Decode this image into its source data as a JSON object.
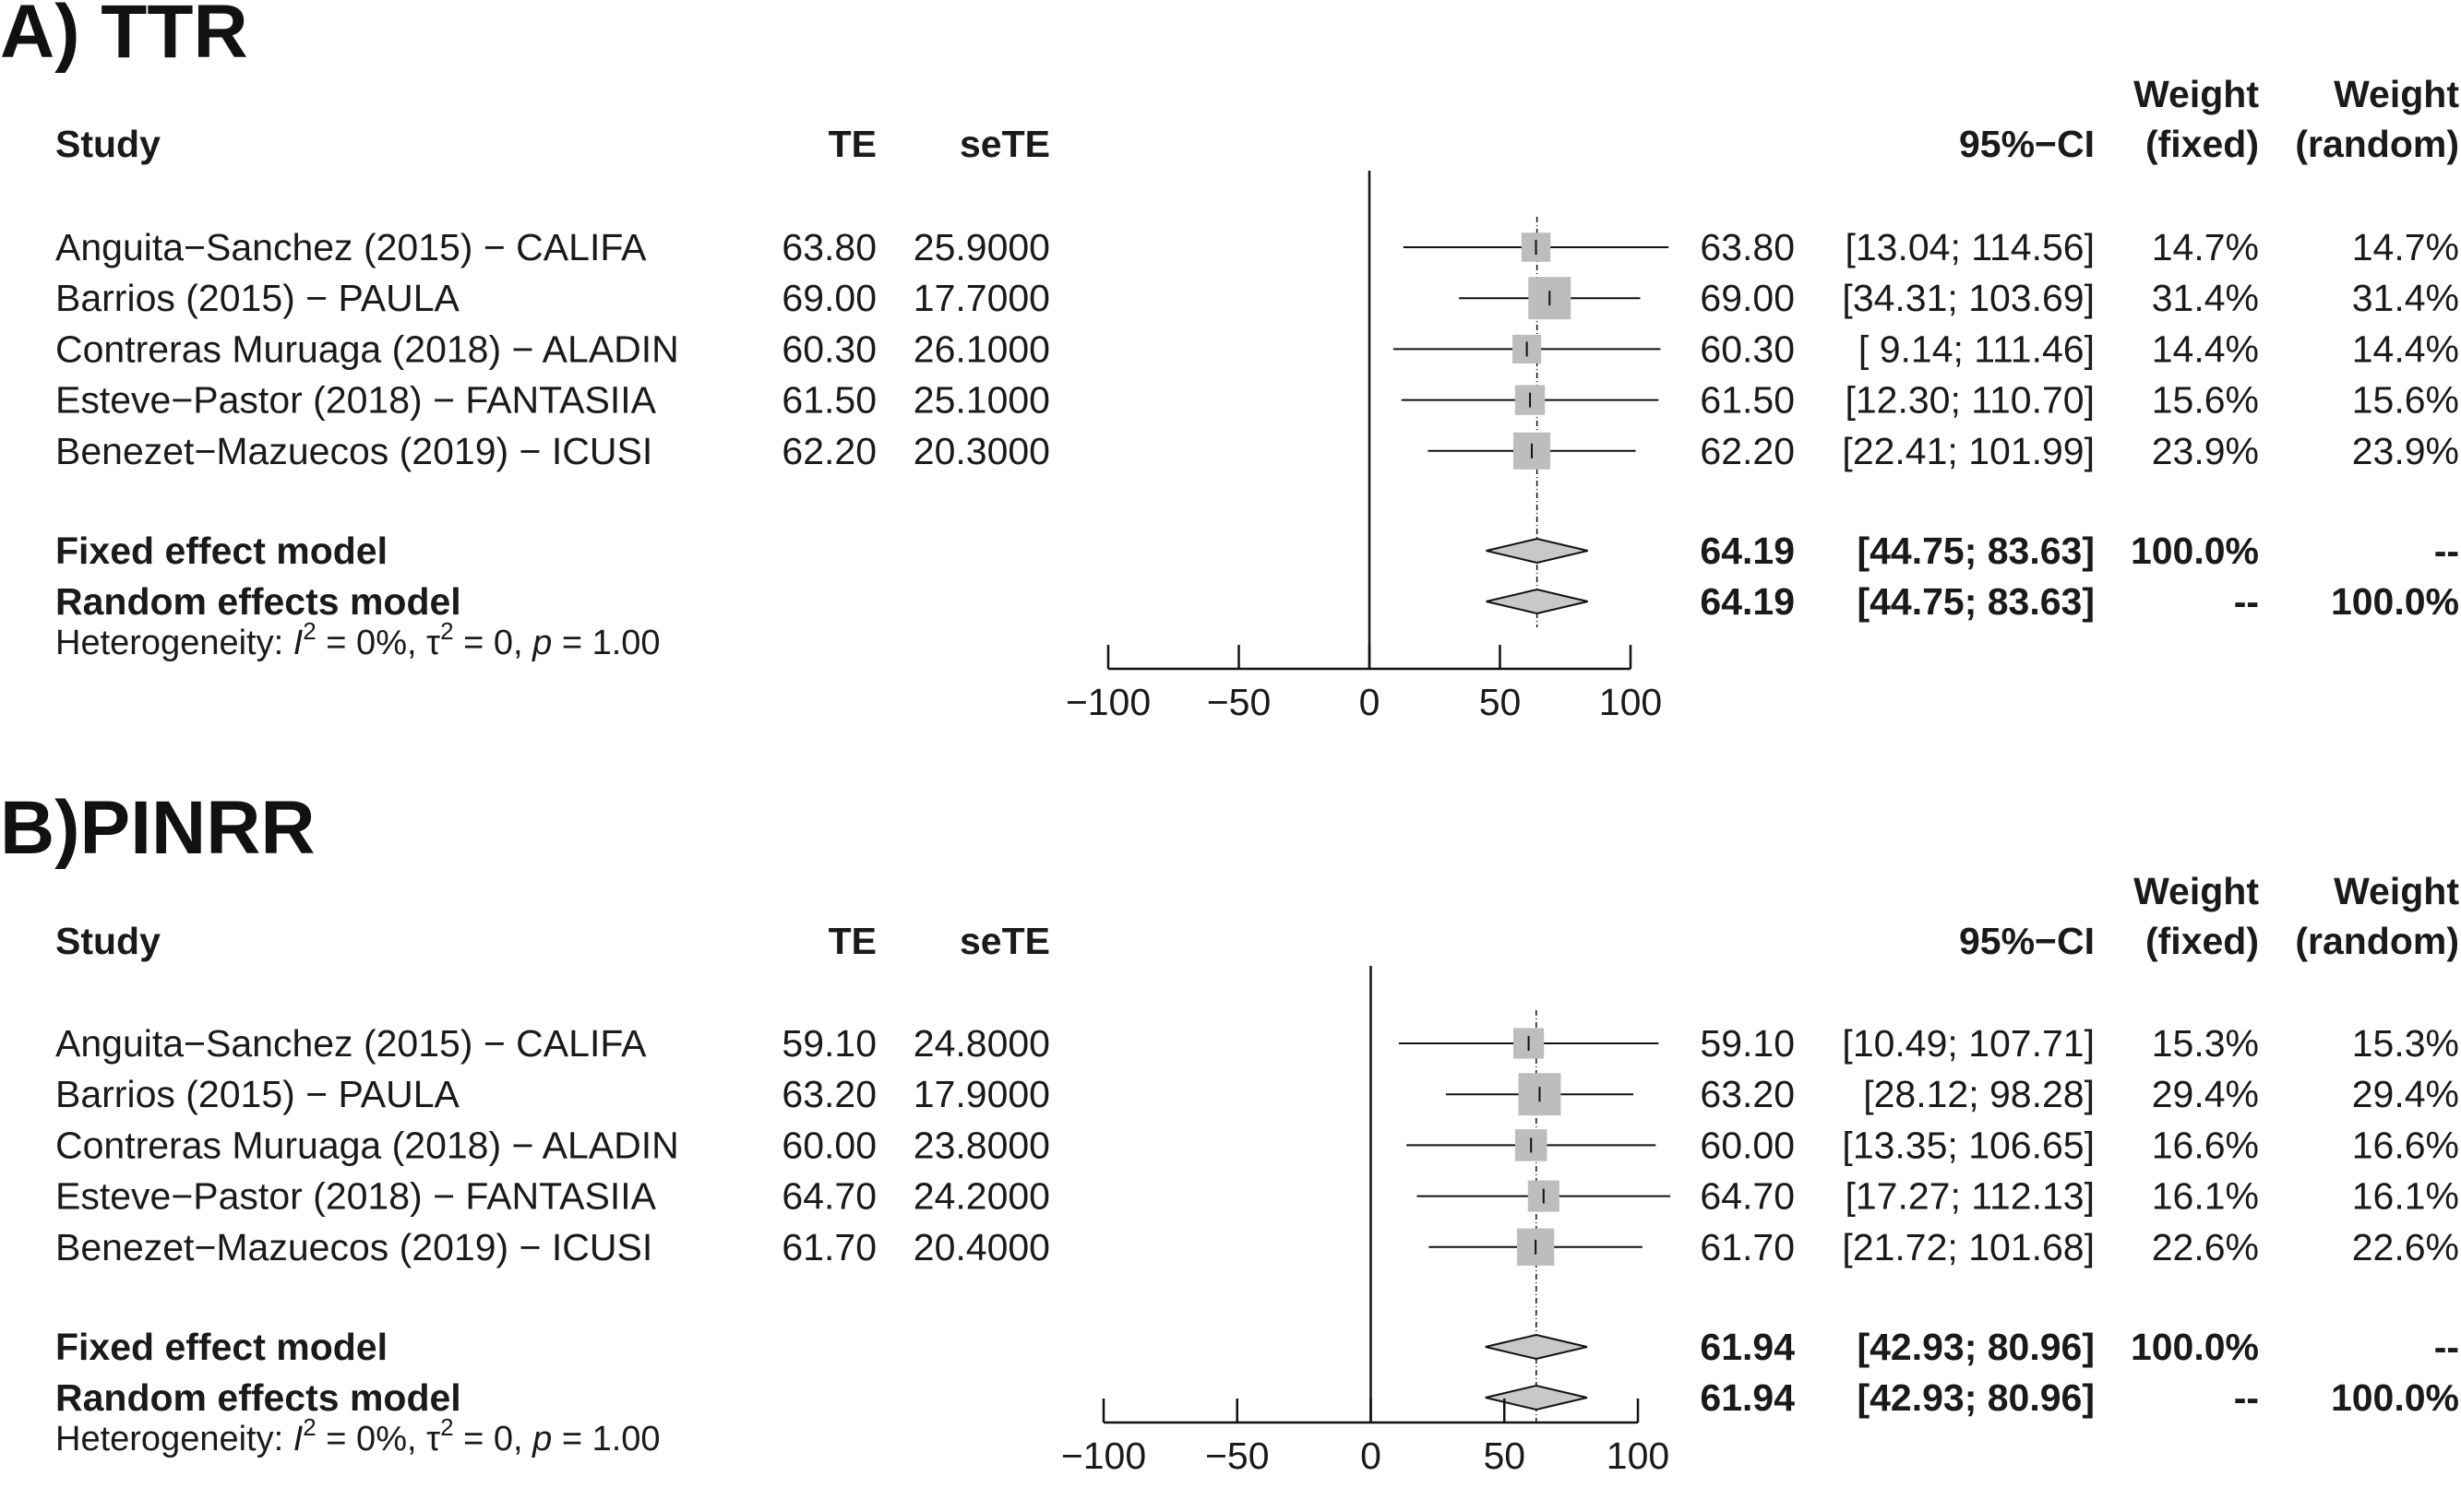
{
  "columns": {
    "study": "Study",
    "te": "TE",
    "sete": "seTE",
    "ci": "95%−CI",
    "weight_fixed_1": "Weight",
    "weight_fixed_2": "(fixed)",
    "weight_random_1": "Weight",
    "weight_random_2": "(random)"
  },
  "chart_data": [
    {
      "type": "forest",
      "panel_title": "A) TTR",
      "xlim": [
        -100,
        100
      ],
      "ticks": [
        -100,
        -50,
        0,
        50,
        100
      ],
      "tick_labels": [
        "−100",
        "−50",
        "0",
        "50",
        "100"
      ],
      "studies": [
        {
          "name": "Anguita−Sanchez (2015) − CALIFA",
          "te": 63.8,
          "lower": 13.04,
          "upper": 114.56,
          "te_label": "63.80",
          "sete_label": "25.9000",
          "est_label": "63.80",
          "ci_label": "[13.04; 114.56]",
          "w_fixed": "14.7%",
          "w_random": "14.7%",
          "weight": 14.7
        },
        {
          "name": "Barrios (2015) − PAULA",
          "te": 69.0,
          "lower": 34.31,
          "upper": 103.69,
          "te_label": "69.00",
          "sete_label": "17.7000",
          "est_label": "69.00",
          "ci_label": "[34.31; 103.69]",
          "w_fixed": "31.4%",
          "w_random": "31.4%",
          "weight": 31.4
        },
        {
          "name": "Contreras Muruaga (2018) − ALADIN",
          "te": 60.3,
          "lower": 9.14,
          "upper": 111.46,
          "te_label": "60.30",
          "sete_label": "26.1000",
          "est_label": "60.30",
          "ci_label": "[ 9.14; 111.46]",
          "w_fixed": "14.4%",
          "w_random": "14.4%",
          "weight": 14.4
        },
        {
          "name": "Esteve−Pastor (2018) − FANTASIIA",
          "te": 61.5,
          "lower": 12.3,
          "upper": 110.7,
          "te_label": "61.50",
          "sete_label": "25.1000",
          "est_label": "61.50",
          "ci_label": "[12.30; 110.70]",
          "w_fixed": "15.6%",
          "w_random": "15.6%",
          "weight": 15.6
        },
        {
          "name": "Benezet−Mazuecos (2019) − ICUSI",
          "te": 62.2,
          "lower": 22.41,
          "upper": 101.99,
          "te_label": "62.20",
          "sete_label": "20.3000",
          "est_label": "62.20",
          "ci_label": "[22.41; 101.99]",
          "w_fixed": "23.9%",
          "w_random": "23.9%",
          "weight": 23.9
        }
      ],
      "models": [
        {
          "name": "Fixed effect model",
          "est": 64.19,
          "lower": 44.75,
          "upper": 83.63,
          "est_label": "64.19",
          "ci_label": "[44.75;  83.63]",
          "w_fixed": "100.0%",
          "w_random": "--"
        },
        {
          "name": "Random effects model",
          "est": 64.19,
          "lower": 44.75,
          "upper": 83.63,
          "est_label": "64.19",
          "ci_label": "[44.75;  83.63]",
          "w_fixed": "--",
          "w_random": "100.0%"
        }
      ],
      "heterogeneity": {
        "prefix": "Heterogeneity: ",
        "i2": "I",
        "i2_val": " = 0%, ",
        "tau": "τ",
        "tau_val": " = 0, ",
        "p": "p",
        "p_val": " = 1.00"
      }
    },
    {
      "type": "forest",
      "panel_title": "B)PINRR",
      "xlim": [
        -100,
        100
      ],
      "ticks": [
        -100,
        -50,
        0,
        50,
        100
      ],
      "tick_labels": [
        "−100",
        "−50",
        "0",
        "50",
        "100"
      ],
      "studies": [
        {
          "name": "Anguita−Sanchez (2015) − CALIFA",
          "te": 59.1,
          "lower": 10.49,
          "upper": 107.71,
          "te_label": "59.10",
          "sete_label": "24.8000",
          "est_label": "59.10",
          "ci_label": "[10.49; 107.71]",
          "w_fixed": "15.3%",
          "w_random": "15.3%",
          "weight": 15.3
        },
        {
          "name": "Barrios (2015) − PAULA",
          "te": 63.2,
          "lower": 28.12,
          "upper": 98.28,
          "te_label": "63.20",
          "sete_label": "17.9000",
          "est_label": "63.20",
          "ci_label": "[28.12;  98.28]",
          "w_fixed": "29.4%",
          "w_random": "29.4%",
          "weight": 29.4
        },
        {
          "name": "Contreras Muruaga (2018) − ALADIN",
          "te": 60.0,
          "lower": 13.35,
          "upper": 106.65,
          "te_label": "60.00",
          "sete_label": "23.8000",
          "est_label": "60.00",
          "ci_label": "[13.35; 106.65]",
          "w_fixed": "16.6%",
          "w_random": "16.6%",
          "weight": 16.6
        },
        {
          "name": "Esteve−Pastor (2018) − FANTASIIA",
          "te": 64.7,
          "lower": 17.27,
          "upper": 112.13,
          "te_label": "64.70",
          "sete_label": "24.2000",
          "est_label": "64.70",
          "ci_label": "[17.27; 112.13]",
          "w_fixed": "16.1%",
          "w_random": "16.1%",
          "weight": 16.1
        },
        {
          "name": "Benezet−Mazuecos (2019) − ICUSI",
          "te": 61.7,
          "lower": 21.72,
          "upper": 101.68,
          "te_label": "61.70",
          "sete_label": "20.4000",
          "est_label": "61.70",
          "ci_label": "[21.72; 101.68]",
          "w_fixed": "22.6%",
          "w_random": "22.6%",
          "weight": 22.6
        }
      ],
      "models": [
        {
          "name": "Fixed effect model",
          "est": 61.94,
          "lower": 42.93,
          "upper": 80.96,
          "est_label": "61.94",
          "ci_label": "[42.93;  80.96]",
          "w_fixed": "100.0%",
          "w_random": "--"
        },
        {
          "name": "Random effects model",
          "est": 61.94,
          "lower": 42.93,
          "upper": 80.96,
          "est_label": "61.94",
          "ci_label": "[42.93;  80.96]",
          "w_fixed": "--",
          "w_random": "100.0%"
        }
      ],
      "heterogeneity": {
        "prefix": "Heterogeneity: ",
        "i2": "I",
        "i2_val": " = 0%, ",
        "tau": "τ",
        "tau_val": " = 0, ",
        "p": "p",
        "p_val": " = 1.00"
      }
    }
  ],
  "colors": {
    "box": "#bdbdbd",
    "diamond": "#c8c8c8",
    "line": "#111111"
  }
}
